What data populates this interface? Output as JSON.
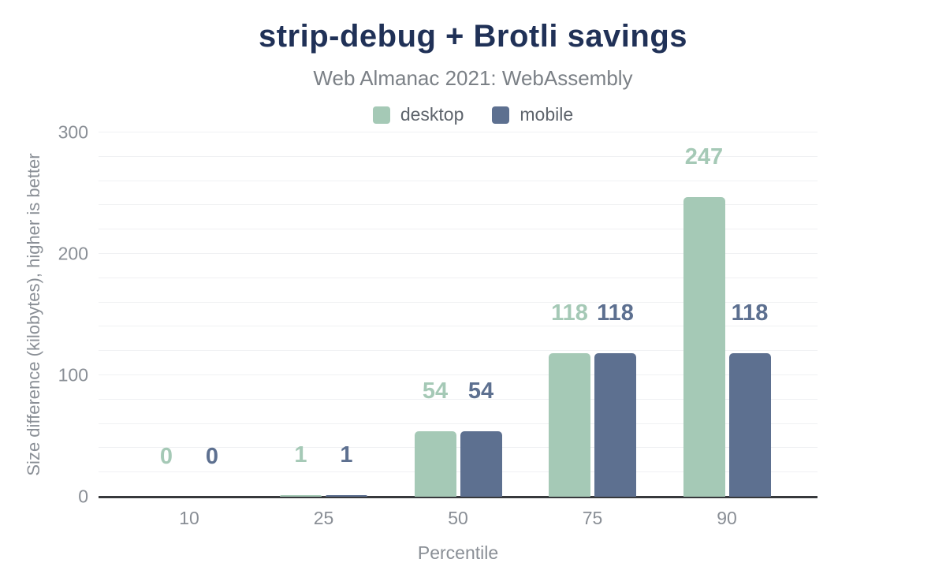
{
  "chart_data": {
    "type": "bar",
    "title": "strip-debug + Brotli savings",
    "subtitle": "Web Almanac 2021: WebAssembly",
    "categories": [
      "10",
      "25",
      "50",
      "75",
      "90"
    ],
    "series": [
      {
        "name": "desktop",
        "color": "#a5c9b6",
        "values": [
          0,
          1,
          54,
          118,
          247
        ]
      },
      {
        "name": "mobile",
        "color": "#5d7090",
        "values": [
          0,
          1,
          54,
          118,
          118
        ]
      }
    ],
    "xlabel": "Percentile",
    "ylabel": "Size difference (kilobytes), higher is better",
    "ylim": [
      0,
      300
    ],
    "yticks": [
      0,
      100,
      200,
      300
    ],
    "grid": "horizontal",
    "grid_step": 20,
    "legend_position": "top",
    "value_labels": true
  },
  "colors": {
    "background": "#ffffff",
    "title": "#203157",
    "subtitle": "#7b8086",
    "axis_label": "#8a8f96",
    "tick_label": "#898e95",
    "legend_text": "#5e646c",
    "gridline": "#f0f1f3",
    "baseline": "#37393c"
  }
}
